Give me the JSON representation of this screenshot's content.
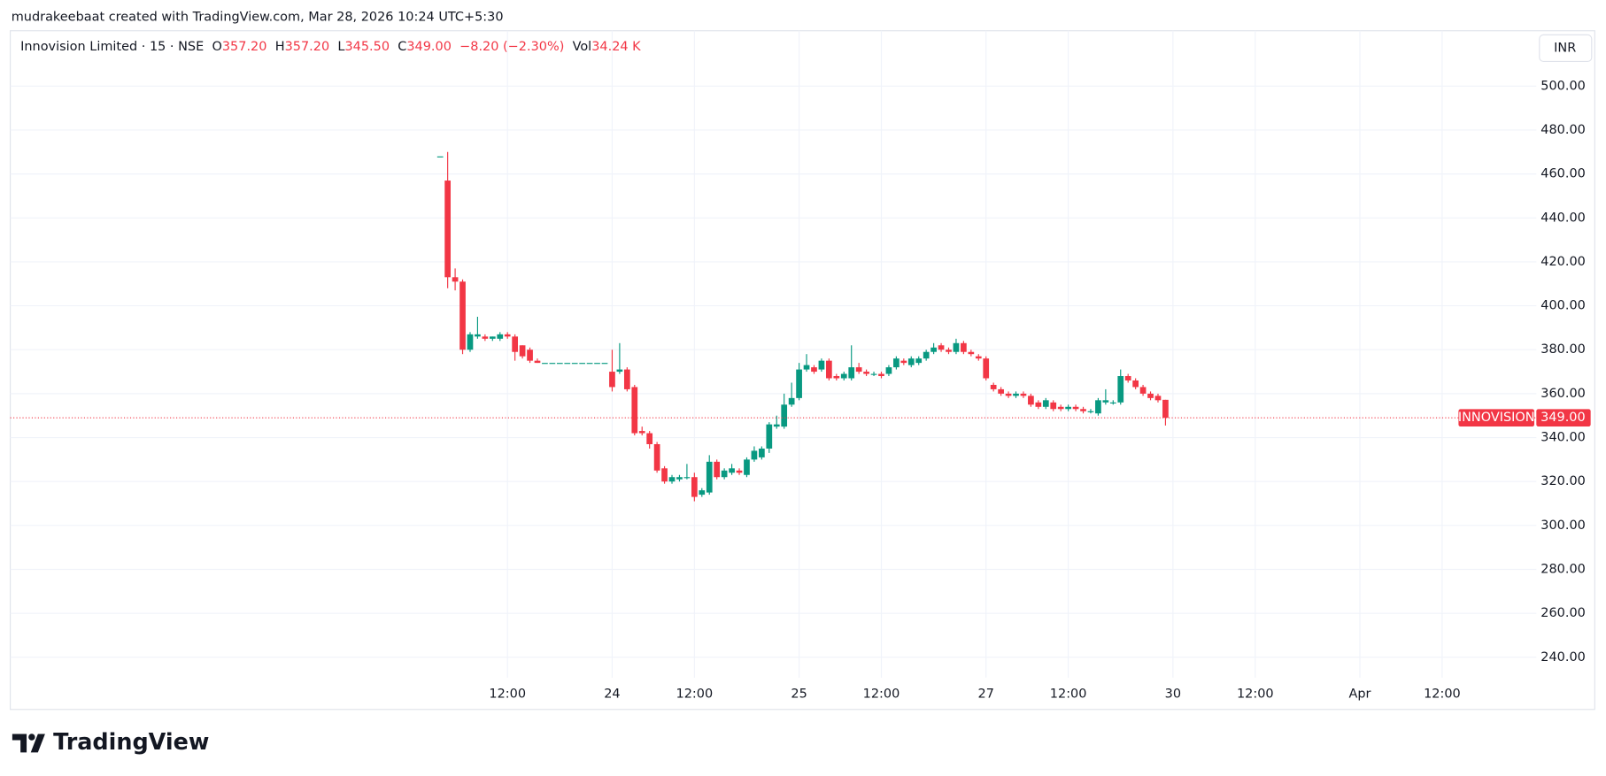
{
  "header": {
    "credit": "mudrakeebaat created with TradingView.com, Mar 28, 2026 10:24 UTC+5:30"
  },
  "legend": {
    "symbol": "Innovision Limited · 15 · NSE",
    "o_label": "O",
    "o": "357.20",
    "h_label": "H",
    "h": "357.20",
    "l_label": "L",
    "l": "345.50",
    "c_label": "C",
    "c": "349.00",
    "change": "−8.20 (−2.30%)",
    "vol_label": "Vol",
    "vol": "34.24 K"
  },
  "currency": "INR",
  "footer": {
    "brand": "TradingView"
  },
  "chart_data": {
    "type": "candlestick",
    "up_color": "#089981",
    "down_color": "#f23645",
    "grid": true,
    "ylim": [
      230.7,
      525.2
    ],
    "yticks": [
      {
        "value": 240,
        "label": "240.00"
      },
      {
        "value": 260,
        "label": "260.00"
      },
      {
        "value": 280,
        "label": "280.00"
      },
      {
        "value": 300,
        "label": "300.00"
      },
      {
        "value": 320,
        "label": "320.00"
      },
      {
        "value": 340,
        "label": "340.00"
      },
      {
        "value": 360,
        "label": "360.00"
      },
      {
        "value": 380,
        "label": "380.00"
      },
      {
        "value": 400,
        "label": "400.00"
      },
      {
        "value": 420,
        "label": "420.00"
      },
      {
        "value": 440,
        "label": "440.00"
      },
      {
        "value": 460,
        "label": "460.00"
      },
      {
        "value": 480,
        "label": "480.00"
      },
      {
        "value": 500,
        "label": "500.00"
      }
    ],
    "xlim": [
      -55.5,
      148.6
    ],
    "xticks": [
      {
        "value": 11,
        "label": "12:00"
      },
      {
        "value": 25,
        "label": "24"
      },
      {
        "value": 36,
        "label": "12:00"
      },
      {
        "value": 50,
        "label": "25"
      },
      {
        "value": 61,
        "label": "12:00"
      },
      {
        "value": 75,
        "label": "27"
      },
      {
        "value": 86,
        "label": "12:00"
      },
      {
        "value": 100,
        "label": "30"
      },
      {
        "value": 111,
        "label": "12:00"
      },
      {
        "value": 125,
        "label": "Apr"
      },
      {
        "value": 136,
        "label": "12:00"
      }
    ],
    "last_price": {
      "value": 349,
      "label": "349.00"
    },
    "price_tag": "INNOVISION",
    "open": [
      null,
      null,
      468,
      457,
      413,
      411,
      380,
      386,
      386,
      385,
      385,
      387,
      386,
      382,
      380,
      375,
      374,
      374,
      374,
      374,
      374,
      374,
      374,
      374,
      374,
      370,
      370,
      371,
      363,
      343,
      342,
      337,
      326,
      320,
      321,
      322,
      322,
      314,
      315,
      329,
      322,
      324,
      325,
      323,
      330,
      331,
      335,
      345,
      345,
      355,
      358,
      371,
      372,
      371,
      375,
      368,
      367,
      367,
      372,
      370,
      369,
      369,
      369,
      372,
      375,
      373,
      374,
      376,
      379,
      382,
      380,
      379,
      383,
      379,
      377,
      376,
      364,
      362,
      360,
      359,
      360,
      359,
      356,
      354,
      356,
      354,
      353,
      354,
      353,
      352,
      351,
      356,
      356,
      356,
      368,
      366,
      363,
      360,
      359,
      357.2
    ],
    "high": [
      null,
      null,
      468,
      470,
      417,
      412,
      388,
      395,
      387,
      386,
      388,
      388,
      387,
      382,
      381,
      376,
      374,
      374,
      374,
      374,
      374,
      374,
      374,
      374,
      374,
      380,
      383,
      372,
      364,
      345,
      343,
      338,
      327,
      323,
      323,
      328,
      324,
      317,
      332,
      330,
      326,
      328,
      326,
      331,
      336,
      336,
      347,
      350,
      360,
      365,
      374,
      378,
      373,
      376,
      376,
      369,
      370,
      382,
      374,
      371,
      370,
      370,
      373,
      377,
      376,
      377,
      377,
      380,
      383,
      383,
      381,
      385,
      384,
      380,
      378,
      377,
      365,
      363,
      361,
      361,
      361,
      360,
      357,
      358,
      357,
      355,
      355,
      355,
      354,
      353,
      358,
      362,
      357,
      371,
      369,
      367,
      364,
      361,
      360,
      357.2
    ],
    "low": [
      null,
      null,
      468,
      408,
      407,
      378,
      379,
      385,
      384,
      384,
      384,
      385,
      375,
      376,
      374,
      374,
      374,
      374,
      374,
      374,
      374,
      374,
      374,
      374,
      374,
      361,
      369,
      361,
      341,
      341,
      335,
      324,
      319,
      319,
      320,
      321,
      311,
      313,
      314,
      321,
      321,
      323,
      323,
      322,
      329,
      330,
      333,
      344,
      344,
      354,
      357,
      370,
      369,
      370,
      366,
      366,
      366,
      366,
      369,
      368,
      368,
      367,
      368,
      371,
      373,
      372,
      373,
      375,
      378,
      379,
      378,
      378,
      378,
      377,
      375,
      366,
      361,
      359,
      358,
      358,
      358,
      354,
      353,
      353,
      352,
      352,
      352,
      352,
      351,
      351,
      350,
      355,
      355,
      355,
      365,
      362,
      359,
      357,
      356,
      345.5
    ],
    "close": [
      null,
      null,
      468,
      413,
      411,
      380,
      387,
      387,
      385,
      386,
      387,
      386,
      379,
      377,
      375,
      374,
      374,
      374,
      374,
      374,
      374,
      374,
      374,
      374,
      374,
      363,
      371,
      362,
      342,
      342,
      337,
      325,
      320,
      322,
      322,
      322,
      313,
      316,
      329,
      322,
      325,
      326,
      324,
      330,
      334,
      335,
      346,
      346,
      355,
      358,
      371,
      373,
      370,
      375,
      367,
      367,
      369,
      372,
      370,
      369,
      369,
      368,
      372,
      376,
      374,
      376,
      376,
      379,
      381,
      380,
      379,
      383,
      379,
      378,
      376,
      367,
      362,
      360,
      359,
      360,
      359,
      355,
      354,
      357,
      353,
      353,
      354,
      353,
      352,
      352,
      357,
      357,
      356,
      368,
      366,
      363,
      360,
      358,
      357,
      349
    ]
  }
}
